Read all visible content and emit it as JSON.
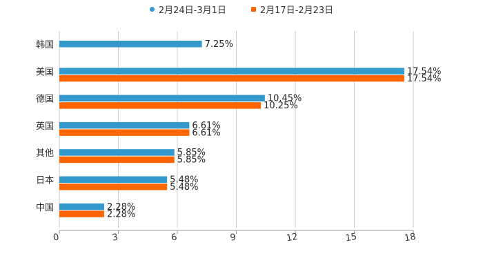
{
  "chart_data": {
    "type": "bar",
    "orientation": "horizontal",
    "categories": [
      "韩国",
      "美国",
      "德国",
      "英国",
      "其他",
      "日本",
      "中国"
    ],
    "series": [
      {
        "name": "2月24日-3月1日",
        "color": "#3399CC",
        "marker": "circle",
        "values": [
          7.25,
          17.54,
          10.45,
          6.61,
          5.85,
          5.48,
          2.28
        ],
        "labels": [
          "7.25%",
          "17.54%",
          "10.45%",
          "6.61%",
          "5.85%",
          "5.48%",
          "2.28%"
        ]
      },
      {
        "name": "2月17日-2月23日",
        "color": "#FF6600",
        "marker": "square",
        "values": [
          null,
          17.54,
          10.25,
          6.61,
          5.85,
          5.48,
          2.28
        ],
        "labels": [
          "",
          "17.54%",
          "10.25%",
          "6.61%",
          "5.85%",
          "5.48%",
          "2.28%"
        ]
      }
    ],
    "xlim": [
      0,
      18
    ],
    "xticks": [
      0,
      3,
      6,
      9,
      12,
      15,
      18
    ],
    "xtick_labels": [
      "0",
      "3",
      "6",
      "9",
      "12",
      "15",
      "18"
    ],
    "grid": true,
    "legend_position": "top-center",
    "title": "",
    "xlabel": "",
    "ylabel": ""
  }
}
